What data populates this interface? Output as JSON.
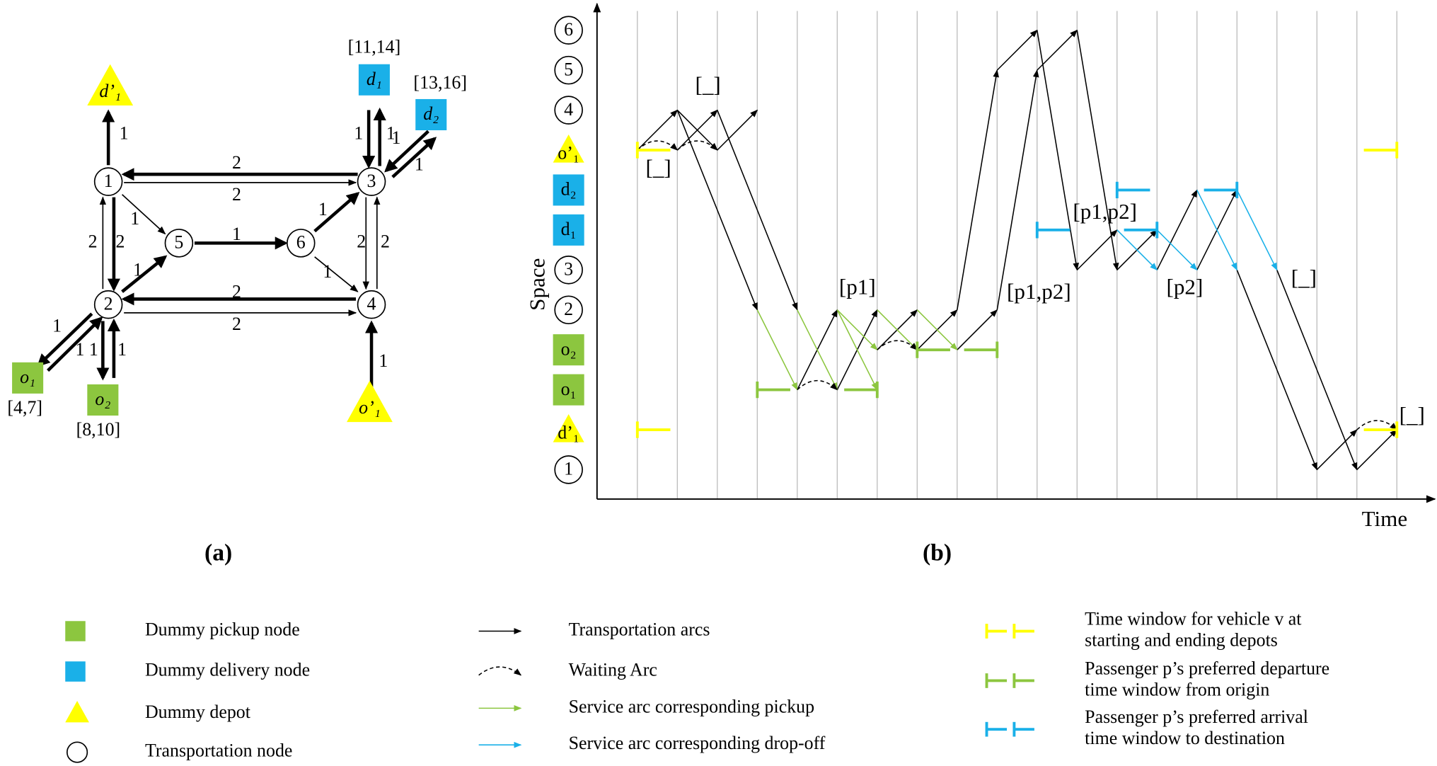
{
  "figure_a": {
    "caption": "(a)",
    "nodes": [
      "1",
      "2",
      "3",
      "4",
      "5",
      "6"
    ],
    "dummy_nodes": [
      "d’₁",
      "d₁",
      "d₂",
      "o₁",
      "o₂",
      "o’₁"
    ],
    "time_windows": [
      "[11,14]",
      "[13,16]",
      "[4,7]",
      "[8,10]"
    ],
    "edge_weights": [
      "1",
      "2",
      "2",
      "2",
      "2",
      "1",
      "1",
      "1",
      "2",
      "2",
      "1",
      "1",
      "2",
      "2",
      "1",
      "1",
      "1",
      "1",
      "1",
      "1",
      "1",
      "1",
      "1"
    ]
  },
  "figure_b": {
    "caption": "(b)",
    "y_axis_label": "Space",
    "x_axis_label": "Time",
    "space_labels": [
      "1",
      "d’₁",
      "o₁",
      "o₂",
      "2",
      "3",
      "d₁",
      "d₂",
      "o’₁",
      "4",
      "5",
      "6"
    ],
    "load_labels": [
      "[_]",
      "[_]",
      "[p1]",
      "[p1,p2]",
      "[p1,p2]",
      "[p2]",
      "[_]",
      "[_]"
    ]
  },
  "legend": [
    {
      "lines": [
        "Dummy pickup node"
      ]
    },
    {
      "lines": [
        "Dummy delivery node"
      ]
    },
    {
      "lines": [
        "Dummy depot"
      ]
    },
    {
      "lines": [
        "Transportation node"
      ]
    },
    {
      "lines": [
        "Transportation arcs"
      ]
    },
    {
      "lines": [
        "Waiting Arc"
      ]
    },
    {
      "lines": [
        "Service arc corresponding pickup"
      ]
    },
    {
      "lines": [
        "Service arc corresponding drop-off"
      ]
    },
    {
      "lines": [
        "Time window for vehicle v at",
        "starting and ending depots"
      ]
    },
    {
      "lines": [
        "Passenger p’s preferred departure",
        "time window from origin"
      ]
    },
    {
      "lines": [
        "Passenger p’s preferred arrival",
        "time window to destination"
      ]
    }
  ]
}
